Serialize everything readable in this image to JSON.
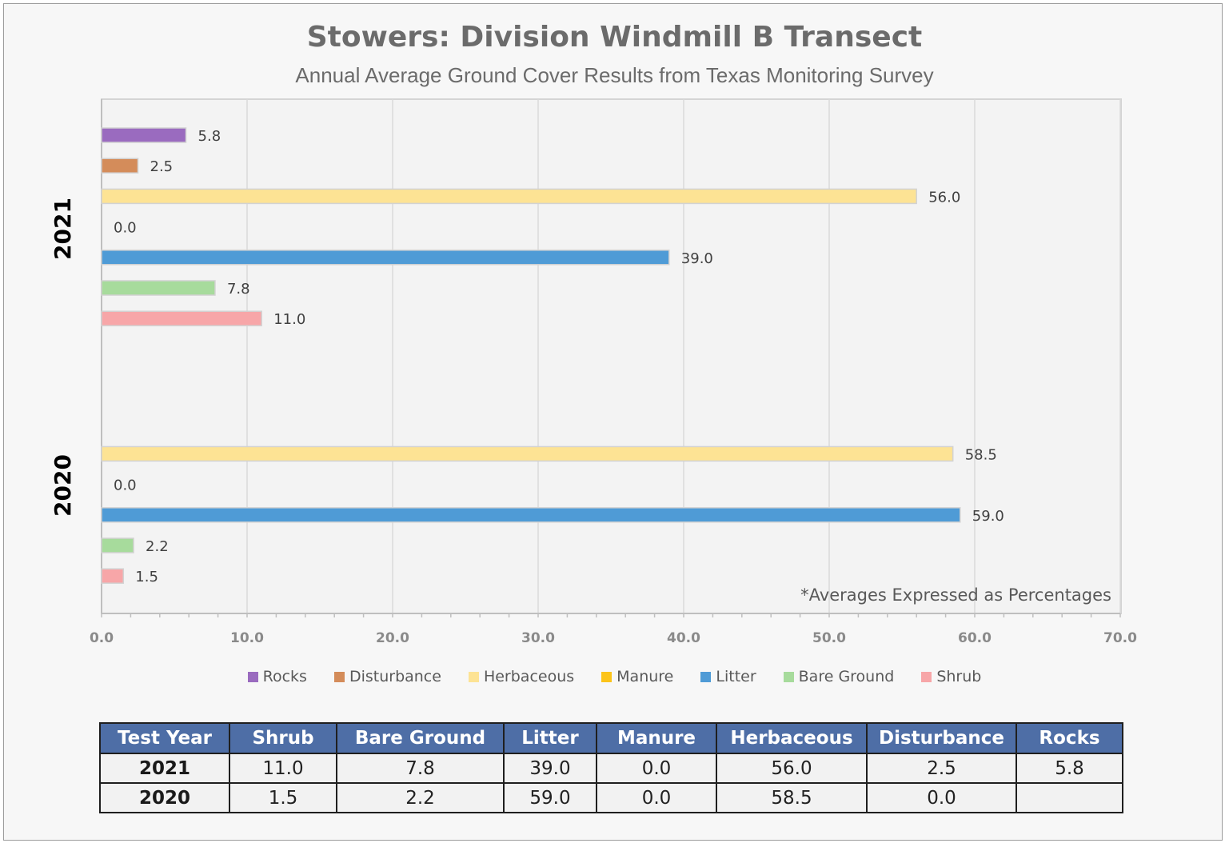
{
  "chart_data": {
    "type": "bar",
    "orientation": "horizontal",
    "title": "Stowers: Division Windmill B Transect",
    "subtitle": "Annual Average Ground Cover Results from Texas Monitoring Survey",
    "note": "*Averages Expressed as Percentages",
    "categories": [
      "2021",
      "2020"
    ],
    "series": [
      {
        "name": "Rocks",
        "color": "#9a6bbf",
        "values": [
          5.8,
          null
        ]
      },
      {
        "name": "Disturbance",
        "color": "#d48c5a",
        "values": [
          2.5,
          null
        ]
      },
      {
        "name": "Herbaceous",
        "color": "#fde394",
        "values": [
          56.0,
          58.5
        ]
      },
      {
        "name": "Manure",
        "color": "#fcc41a",
        "values": [
          0.0,
          0.0
        ]
      },
      {
        "name": "Litter",
        "color": "#4f9bd6",
        "values": [
          39.0,
          59.0
        ]
      },
      {
        "name": "Bare Ground",
        "color": "#a7db9c",
        "values": [
          7.8,
          2.2
        ]
      },
      {
        "name": "Shrub",
        "color": "#f7a6a8",
        "values": [
          11.0,
          1.5
        ]
      }
    ],
    "value_labels": [
      [
        "5.8",
        ""
      ],
      [
        "2.5",
        ""
      ],
      [
        "56.0",
        "58.5"
      ],
      [
        "0.0",
        "0.0"
      ],
      [
        "39.0",
        "59.0"
      ],
      [
        "7.8",
        "2.2"
      ],
      [
        "11.0",
        "1.5"
      ]
    ],
    "xlim": [
      0,
      70
    ],
    "xticks": [
      0,
      10,
      20,
      30,
      40,
      50,
      60,
      70
    ],
    "xtick_labels": [
      "0.0",
      "10.0",
      "20.0",
      "30.0",
      "40.0",
      "50.0",
      "60.0",
      "70.0"
    ],
    "xlabel": "",
    "ylabel": "",
    "grid": true,
    "legend_position": "bottom",
    "legend_order": [
      "Rocks",
      "Disturbance",
      "Herbaceous",
      "Manure",
      "Litter",
      "Bare Ground",
      "Shrub"
    ]
  },
  "table": {
    "headers": [
      "Test Year",
      "Shrub",
      "Bare Ground",
      "Litter",
      "Manure",
      "Herbaceous",
      "Disturbance",
      "Rocks"
    ],
    "rows": [
      [
        "2021",
        "11.0",
        "7.8",
        "39.0",
        "0.0",
        "56.0",
        "2.5",
        "5.8"
      ],
      [
        "2020",
        "1.5",
        "2.2",
        "59.0",
        "0.0",
        "58.5",
        "0.0",
        ""
      ]
    ],
    "header_color": "#4e6ea6"
  }
}
